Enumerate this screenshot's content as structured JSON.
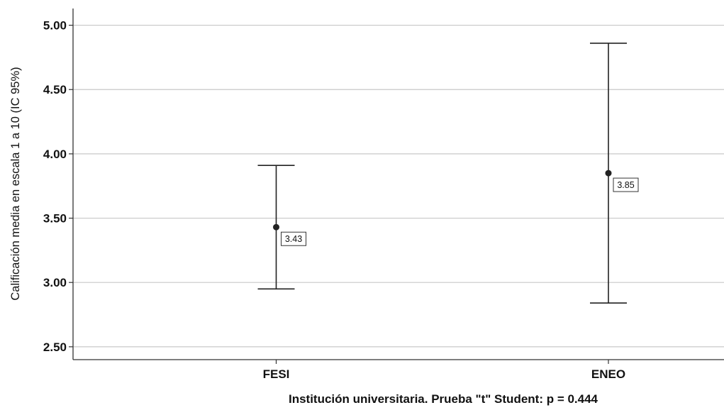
{
  "chart_data": {
    "type": "errorbar",
    "xlabel": "Institución universitaria. Prueba \"t\" Student: p = 0.444",
    "ylabel": "Calificación media en escala 1 a 10 (IC 95%)",
    "ylim": [
      2.4,
      5.13
    ],
    "yticks": [
      2.5,
      3.0,
      3.5,
      4.0,
      4.5,
      5.0
    ],
    "ytick_labels": [
      "2.50",
      "3.00",
      "3.50",
      "4.00",
      "4.50",
      "5.00"
    ],
    "grid": true,
    "categories": [
      "FESI",
      "ENEO"
    ],
    "means": [
      3.43,
      3.85
    ],
    "mean_labels": [
      "3.43",
      "3.85"
    ],
    "ci_lower": [
      2.95,
      2.84
    ],
    "ci_upper": [
      3.91,
      4.86
    ]
  }
}
